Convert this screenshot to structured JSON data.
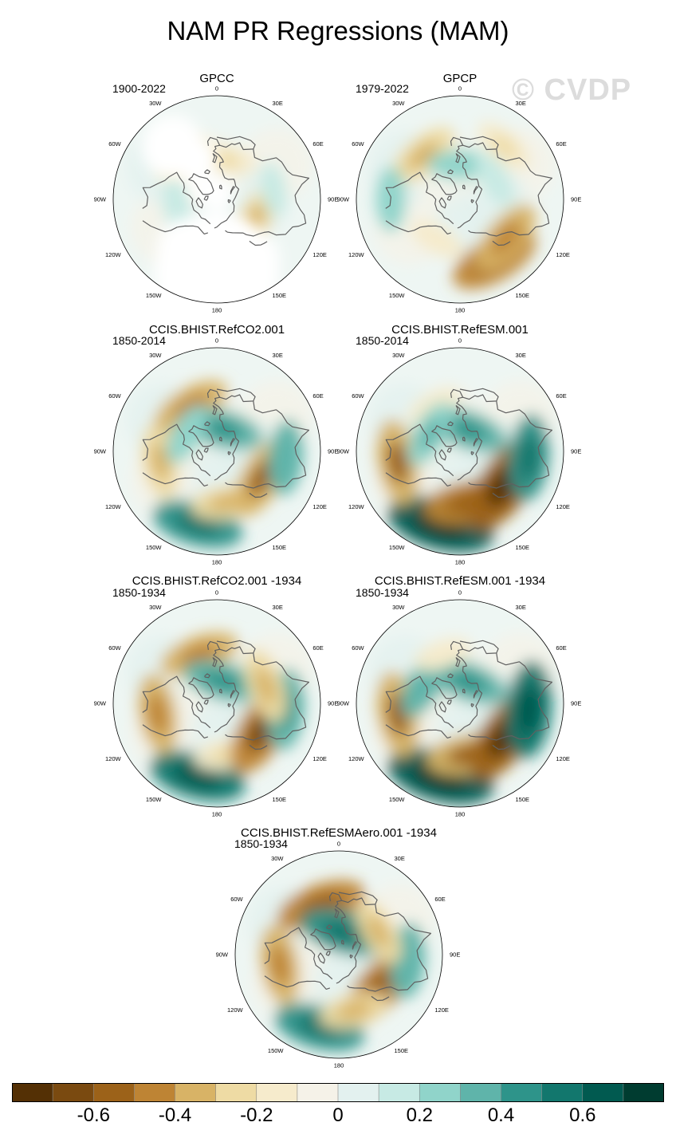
{
  "title": "NAM PR Regressions (MAM)",
  "watermark": "© CVDP",
  "colors": {
    "levels": [
      "#543005",
      "#7a4a10",
      "#9c6219",
      "#be8434",
      "#d8b366",
      "#eedba4",
      "#f6ebcc",
      "#f5f2e8",
      "#e3f1ef",
      "#c7eae4",
      "#90d4ca",
      "#5fb4aa",
      "#2e948a",
      "#12776d",
      "#015a50",
      "#003c30"
    ],
    "coast": "#606060"
  },
  "chart_data": {
    "type": "polar-map",
    "variable": "PR",
    "season": "MAM",
    "colorbar": {
      "ticks": [
        "-0.6",
        "-0.4",
        "-0.2",
        "0",
        "0.2",
        "0.4",
        "0.6"
      ],
      "tick_values": [
        -0.6,
        -0.4,
        -0.2,
        0,
        0.2,
        0.4,
        0.6
      ]
    },
    "longitude_labels": [
      "180",
      "150E",
      "120E",
      "90E",
      "60E",
      "30E",
      "0",
      "30W",
      "60W",
      "90W",
      "120W",
      "150W"
    ],
    "panels": [
      {
        "title": "GPCC",
        "period": "1900-2022",
        "land_only": true,
        "anomalies": [
          {
            "lon": 120,
            "lat": 53,
            "value": -0.25
          },
          {
            "lon": -40,
            "lat": 45,
            "value": -0.18
          },
          {
            "lon": -100,
            "lat": 55,
            "value": 0.15
          },
          {
            "lon": 10,
            "lat": 55,
            "value": -0.2
          },
          {
            "lon": 80,
            "lat": 40,
            "value": 0.1
          }
        ]
      },
      {
        "title": "GPCP",
        "period": "1979-2022",
        "land_only": false,
        "anomalies": [
          {
            "lon": 150,
            "lat": 30,
            "value": -0.45
          },
          {
            "lon": 130,
            "lat": 38,
            "value": -0.35
          },
          {
            "lon": -150,
            "lat": 50,
            "value": -0.15
          },
          {
            "lon": -40,
            "lat": 40,
            "value": -0.3
          },
          {
            "lon": 0,
            "lat": 60,
            "value": 0.2
          },
          {
            "lon": -90,
            "lat": 30,
            "value": 0.2
          },
          {
            "lon": 60,
            "lat": 55,
            "value": 0.15
          },
          {
            "lon": 40,
            "lat": 30,
            "value": -0.2
          }
        ]
      },
      {
        "title": "CCIS.BHIST.RefCO2.001",
        "period": "1850-2014",
        "land_only": false,
        "anomalies": [
          {
            "lon": -165,
            "lat": 25,
            "value": 0.45
          },
          {
            "lon": 170,
            "lat": 45,
            "value": -0.25
          },
          {
            "lon": 120,
            "lat": 45,
            "value": -0.4
          },
          {
            "lon": -100,
            "lat": 40,
            "value": -0.3
          },
          {
            "lon": -30,
            "lat": 45,
            "value": -0.35
          },
          {
            "lon": 15,
            "lat": 70,
            "value": 0.35
          },
          {
            "lon": 95,
            "lat": 30,
            "value": 0.3
          },
          {
            "lon": -60,
            "lat": 60,
            "value": 0.2
          }
        ]
      },
      {
        "title": "CCIS.BHIST.RefESM.001",
        "period": "1850-2014",
        "land_only": false,
        "anomalies": [
          {
            "lon": -165,
            "lat": 25,
            "value": 0.6
          },
          {
            "lon": 170,
            "lat": 45,
            "value": -0.45
          },
          {
            "lon": 125,
            "lat": 42,
            "value": -0.6
          },
          {
            "lon": -100,
            "lat": 35,
            "value": -0.4
          },
          {
            "lon": -30,
            "lat": 45,
            "value": -0.15
          },
          {
            "lon": 20,
            "lat": 70,
            "value": 0.35
          },
          {
            "lon": 95,
            "lat": 30,
            "value": 0.4
          },
          {
            "lon": -60,
            "lat": 60,
            "value": 0.25
          }
        ]
      },
      {
        "title": "CCIS.BHIST.RefCO2.001 -1934",
        "period": "1850-1934",
        "land_only": false,
        "anomalies": [
          {
            "lon": -165,
            "lat": 25,
            "value": 0.5
          },
          {
            "lon": 170,
            "lat": 45,
            "value": -0.2
          },
          {
            "lon": 120,
            "lat": 45,
            "value": -0.5
          },
          {
            "lon": -100,
            "lat": 38,
            "value": -0.35
          },
          {
            "lon": -20,
            "lat": 45,
            "value": -0.35
          },
          {
            "lon": 15,
            "lat": 70,
            "value": 0.35
          },
          {
            "lon": 95,
            "lat": 30,
            "value": 0.35
          },
          {
            "lon": 70,
            "lat": 45,
            "value": -0.3
          }
        ]
      },
      {
        "title": "CCIS.BHIST.RefESM.001 -1934",
        "period": "1850-1934",
        "land_only": false,
        "anomalies": [
          {
            "lon": -165,
            "lat": 25,
            "value": 0.6
          },
          {
            "lon": 170,
            "lat": 45,
            "value": -0.4
          },
          {
            "lon": 125,
            "lat": 42,
            "value": -0.55
          },
          {
            "lon": -100,
            "lat": 35,
            "value": -0.4
          },
          {
            "lon": -60,
            "lat": 55,
            "value": 0.3
          },
          {
            "lon": 20,
            "lat": 70,
            "value": 0.35
          },
          {
            "lon": 95,
            "lat": 30,
            "value": 0.5
          },
          {
            "lon": -20,
            "lat": 45,
            "value": -0.15
          }
        ]
      },
      {
        "title": "CCIS.BHIST.RefESMAero.001 -1934",
        "period": "1850-1934",
        "land_only": false,
        "anomalies": [
          {
            "lon": -165,
            "lat": 25,
            "value": 0.45
          },
          {
            "lon": 130,
            "lat": 45,
            "value": -0.45
          },
          {
            "lon": 165,
            "lat": 40,
            "value": -0.25
          },
          {
            "lon": -100,
            "lat": 38,
            "value": -0.35
          },
          {
            "lon": -20,
            "lat": 45,
            "value": -0.45
          },
          {
            "lon": 15,
            "lat": 70,
            "value": 0.45
          },
          {
            "lon": 95,
            "lat": 30,
            "value": 0.3
          },
          {
            "lon": 60,
            "lat": 50,
            "value": -0.25
          }
        ]
      }
    ]
  }
}
